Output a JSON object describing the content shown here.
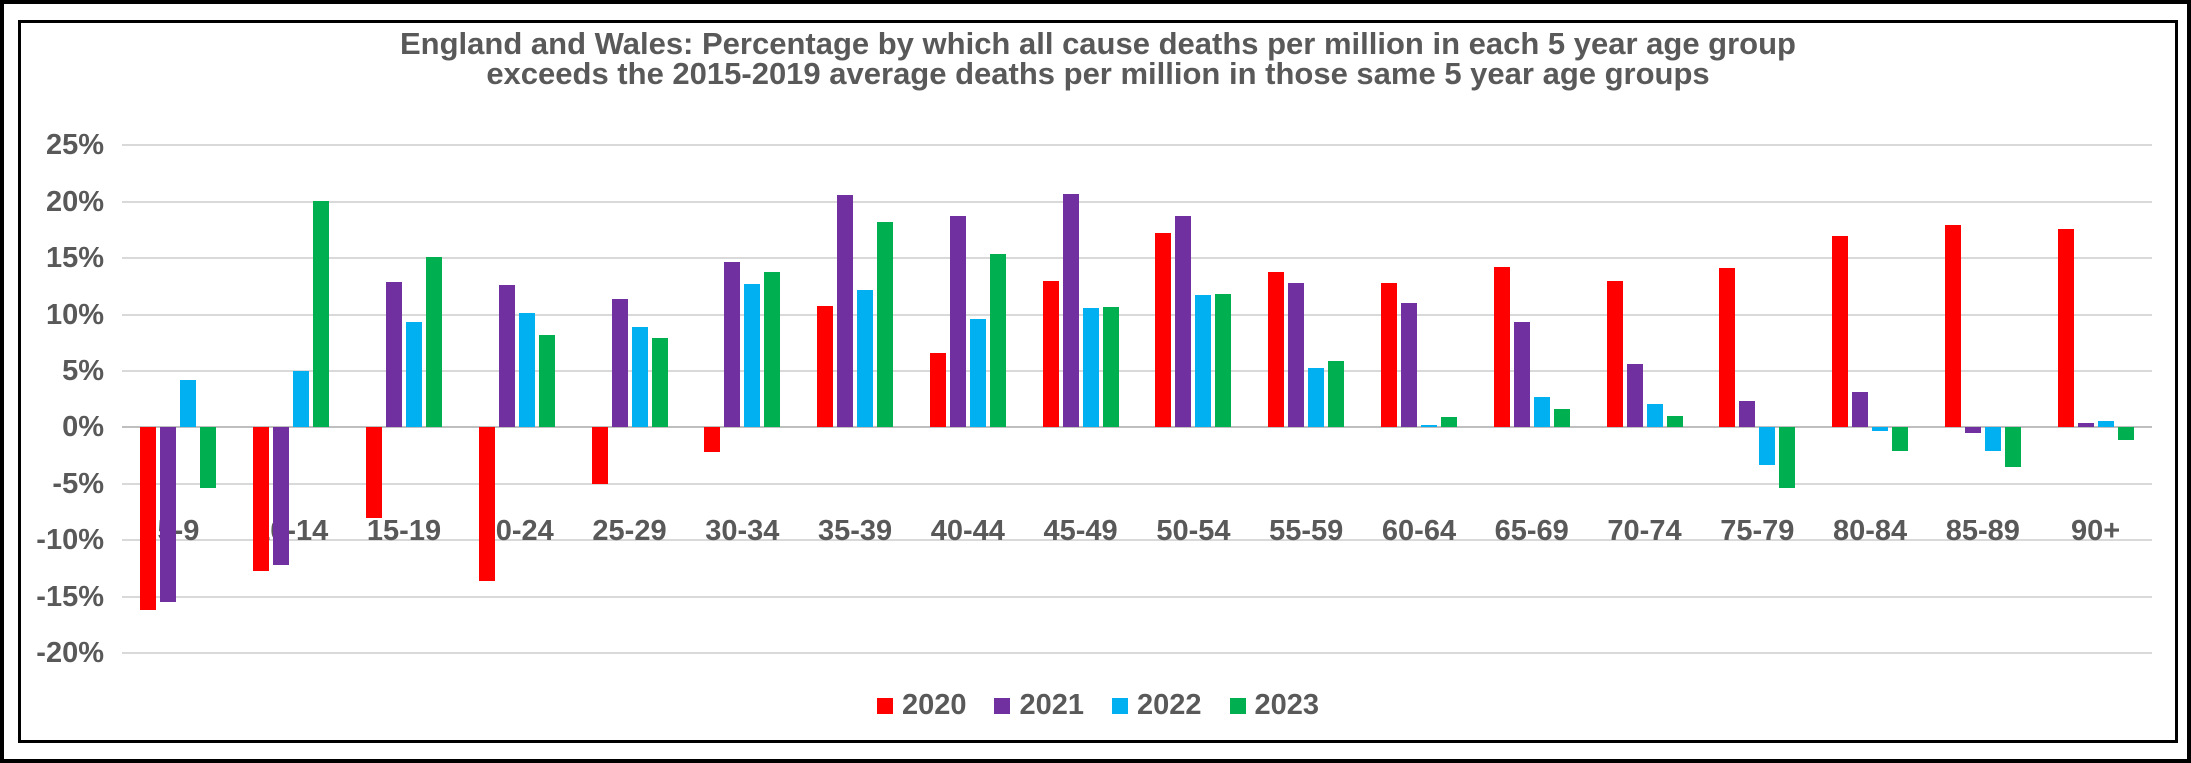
{
  "colors": {
    "text": "#595959",
    "gridline": "#D9D9D9",
    "zero_line": "#BFBFBF",
    "frame_border": "#000000"
  },
  "chart_data": {
    "type": "bar",
    "title_line1": "England and Wales: Percentage by which all cause deaths per million in each 5 year age group",
    "title_line2": "exceeds the 2015-2019 average deaths per million in those same 5 year age groups",
    "categories": [
      "5-9",
      "10-14",
      "15-19",
      "20-24",
      "25-29",
      "30-34",
      "35-39",
      "40-44",
      "45-49",
      "50-54",
      "55-59",
      "60-64",
      "65-69",
      "70-74",
      "75-79",
      "80-84",
      "85-89",
      "90+"
    ],
    "series": [
      {
        "name": "2020",
        "color": "#FF0000",
        "values": [
          -16.2,
          -12.7,
          -8.0,
          -13.6,
          -5.0,
          -2.2,
          10.8,
          6.6,
          13.0,
          17.2,
          13.8,
          12.8,
          14.2,
          13.0,
          14.1,
          17.0,
          17.9,
          17.6
        ]
      },
      {
        "name": "2021",
        "color": "#7030A0",
        "values": [
          -15.5,
          -12.2,
          12.9,
          12.6,
          11.4,
          14.7,
          20.6,
          18.7,
          20.7,
          18.7,
          12.8,
          11.0,
          9.3,
          5.6,
          2.3,
          3.1,
          -0.5,
          0.4
        ]
      },
      {
        "name": "2022",
        "color": "#00B0F0",
        "values": [
          4.2,
          5.0,
          9.3,
          10.1,
          8.9,
          12.7,
          12.2,
          9.6,
          10.6,
          11.7,
          5.3,
          0.2,
          2.7,
          2.1,
          -3.3,
          -0.3,
          -2.1,
          0.6
        ]
      },
      {
        "name": "2023",
        "color": "#00B050",
        "values": [
          -5.4,
          20.1,
          15.1,
          8.2,
          7.9,
          13.8,
          18.2,
          15.4,
          10.7,
          11.8,
          5.9,
          0.9,
          1.6,
          1.0,
          -5.4,
          -2.1,
          -3.5,
          -1.1
        ]
      }
    ],
    "y_ticks": [
      "25%",
      "20%",
      "15%",
      "10%",
      "5%",
      "0%",
      "-5%",
      "-10%",
      "-15%",
      "-20%"
    ],
    "y_tick_values": [
      25,
      20,
      15,
      10,
      5,
      0,
      -5,
      -10,
      -15,
      -20
    ],
    "ylim": [
      -20,
      25
    ],
    "grid": true,
    "legend_position": "bottom"
  }
}
